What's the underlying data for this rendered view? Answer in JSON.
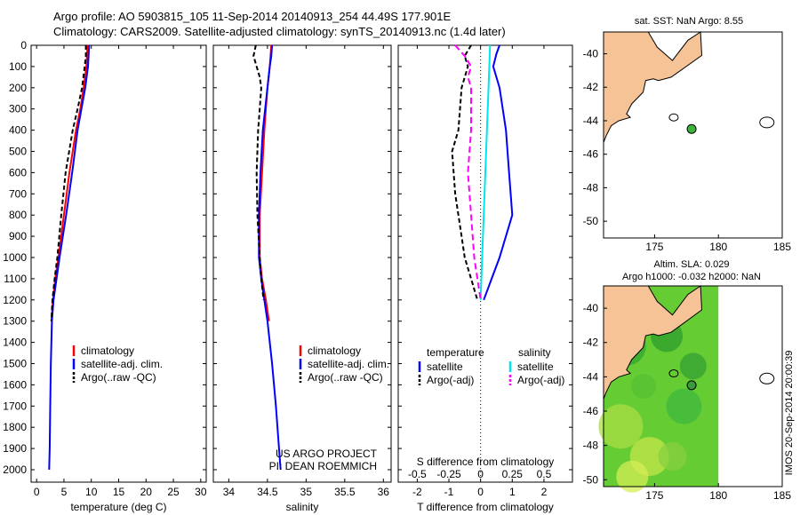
{
  "header": {
    "line1": "Argo profile: AO 5903815_105 11-Sep-2014 20140913_254 44.49S 177.901E",
    "line2": "Climatology: CARS2009. Satellite-adjusted climatology: synTS_20140913.nc (1.4d later)"
  },
  "colors": {
    "red": "#ff0000",
    "blue": "#0000ff",
    "black": "#000000",
    "cyan": "#00e5ee",
    "magenta": "#ff00ff",
    "land": "#f5c396",
    "green": "#3cb43c"
  },
  "depth_ticks": [
    "0",
    "100",
    "200",
    "300",
    "400",
    "500",
    "600",
    "700",
    "800",
    "900",
    "1000",
    "1100",
    "1200",
    "1300",
    "1400",
    "1500",
    "1600",
    "1700",
    "1800",
    "1900",
    "2000"
  ],
  "chart_data": [
    {
      "type": "line",
      "name": "temperature",
      "xlabel": "temperature (deg C)",
      "xlim": [
        -1,
        31
      ],
      "ylim": [
        2000,
        0
      ],
      "xticks": [
        "0",
        "5",
        "10",
        "15",
        "20",
        "25",
        "30"
      ],
      "legend": [
        "climatology",
        "satellite-adj. clim.",
        "Argo(..raw -QC)"
      ],
      "series": [
        {
          "name": "climatology",
          "depth": [
            0,
            100,
            200,
            300,
            400,
            600,
            800,
            1000,
            1100,
            1200,
            1300
          ],
          "values": [
            9.3,
            9.1,
            8.6,
            8.0,
            7.2,
            6.0,
            5.0,
            4.0,
            3.4,
            3.0,
            2.7
          ]
        },
        {
          "name": "satellite-adj. clim.",
          "depth": [
            0,
            100,
            200,
            300,
            400,
            600,
            800,
            1000,
            1200,
            1300,
            1500,
            1700,
            1900,
            2000
          ],
          "values": [
            9.6,
            9.4,
            8.9,
            8.2,
            7.5,
            6.5,
            5.4,
            4.2,
            3.1,
            2.8,
            2.6,
            2.5,
            2.4,
            2.3
          ]
        },
        {
          "name": "Argo(..raw -QC)",
          "depth": [
            0,
            50,
            100,
            200,
            300,
            400,
            600,
            800,
            1000,
            1100,
            1200,
            1300
          ],
          "values": [
            9.0,
            9.0,
            8.8,
            8.3,
            7.5,
            6.6,
            5.3,
            4.5,
            3.8,
            3.3,
            2.9,
            2.7
          ]
        }
      ]
    },
    {
      "type": "line",
      "name": "salinity",
      "xlabel": "salinity",
      "xlim": [
        33.8,
        36.1
      ],
      "ylim": [
        2000,
        0
      ],
      "xticks": [
        "34",
        "34.5",
        "35",
        "35.5",
        "36"
      ],
      "legend": [
        "climatology",
        "satellite-adj. clim.",
        "Argo(..raw -QC)"
      ],
      "annotation": [
        "US ARGO PROJECT",
        "PI: DEAN ROEMMICH"
      ],
      "series": [
        {
          "name": "climatology",
          "depth": [
            0,
            100,
            200,
            300,
            400,
            600,
            800,
            1000,
            1100,
            1200,
            1300
          ],
          "values": [
            34.55,
            34.53,
            34.5,
            34.48,
            34.46,
            34.43,
            34.4,
            34.4,
            34.43,
            34.48,
            34.52
          ]
        },
        {
          "name": "satellite-adj. clim.",
          "depth": [
            0,
            50,
            100,
            200,
            300,
            400,
            600,
            800,
            1000,
            1100,
            1200,
            1300,
            1500,
            1700,
            1900,
            2000
          ],
          "values": [
            34.56,
            34.55,
            34.53,
            34.5,
            34.47,
            34.44,
            34.41,
            34.39,
            34.39,
            34.42,
            34.46,
            34.5,
            34.56,
            34.61,
            34.65,
            34.67
          ]
        },
        {
          "name": "Argo(..raw -QC)",
          "depth": [
            0,
            50,
            100,
            150,
            200,
            300,
            400,
            600,
            800,
            1000,
            1100,
            1200
          ],
          "values": [
            34.35,
            34.32,
            34.36,
            34.4,
            34.42,
            34.4,
            34.38,
            34.36,
            34.37,
            34.4,
            34.42,
            34.45
          ]
        }
      ]
    },
    {
      "type": "line",
      "name": "difference",
      "xlabel": "T difference from climatology",
      "xlabel2": "S difference from climatology",
      "xlim": [
        -2.6,
        2.9
      ],
      "ylim": [
        2000,
        0
      ],
      "xticks": [
        "-2",
        "-1",
        "0",
        "1",
        "2"
      ],
      "xticks2": [
        "-0.5",
        "-0.25",
        "0",
        "0.25",
        "0.5"
      ],
      "legend": {
        "temperature_title": "temperature",
        "salinity_title": "salinity",
        "items": [
          "satellite",
          "Argo(-adj)",
          "satellite",
          "Argo(-adj)"
        ]
      },
      "series": [
        {
          "name": "temperature satellite",
          "depth": [
            0,
            40,
            100,
            200,
            400,
            600,
            800,
            1000,
            1100,
            1200
          ],
          "values": [
            0.6,
            0.5,
            0.4,
            0.6,
            0.8,
            0.9,
            1.0,
            0.6,
            0.35,
            0.1
          ]
        },
        {
          "name": "temperature Argo(-adj)",
          "depth": [
            0,
            50,
            100,
            200,
            400,
            500,
            700,
            900,
            1000,
            1100,
            1200
          ],
          "values": [
            -0.3,
            -0.5,
            -0.4,
            -0.6,
            -0.7,
            -0.9,
            -0.8,
            -0.6,
            -0.5,
            -0.3,
            -0.1
          ]
        },
        {
          "name": "salinity satellite",
          "depth": [
            0,
            200,
            400,
            600,
            800,
            1000,
            1200
          ],
          "values": [
            0.3,
            0.25,
            0.2,
            0.15,
            0.1,
            0.05,
            0.0
          ]
        },
        {
          "name": "salinity Argo(-adj)",
          "depth": [
            0,
            50,
            100,
            150,
            200,
            400,
            600,
            800,
            1000,
            1100,
            1200
          ],
          "values": [
            -0.8,
            -0.5,
            -0.3,
            -0.4,
            -0.3,
            -0.3,
            -0.4,
            -0.3,
            -0.2,
            -0.1,
            0.0
          ]
        }
      ]
    }
  ],
  "maps": {
    "sst": {
      "title": "sat. SST: NaN Argo: 8.55",
      "yticks": [
        "-40",
        "-42",
        "-44",
        "-46",
        "-48",
        "-50"
      ],
      "xticks": [
        "175",
        "180",
        "185"
      ],
      "lon": [
        171,
        185
      ],
      "lat": [
        -51,
        -38.7
      ],
      "argo_position": {
        "lon": 177.9,
        "lat": -44.49
      }
    },
    "sla": {
      "title1": "Altim. SLA: 0.029",
      "title2": "Argo h1000: -0.032 h2000: NaN",
      "yticks": [
        "-40",
        "-42",
        "-44",
        "-46",
        "-48",
        "-50"
      ],
      "xticks": [
        "175",
        "180",
        "185"
      ],
      "lon": [
        171,
        185
      ],
      "lat": [
        -50.4,
        -38.7
      ],
      "argo_position": {
        "lon": 177.9,
        "lat": -44.49
      }
    }
  },
  "footer": "IMOS 20-Sep-2014 20:00:39"
}
